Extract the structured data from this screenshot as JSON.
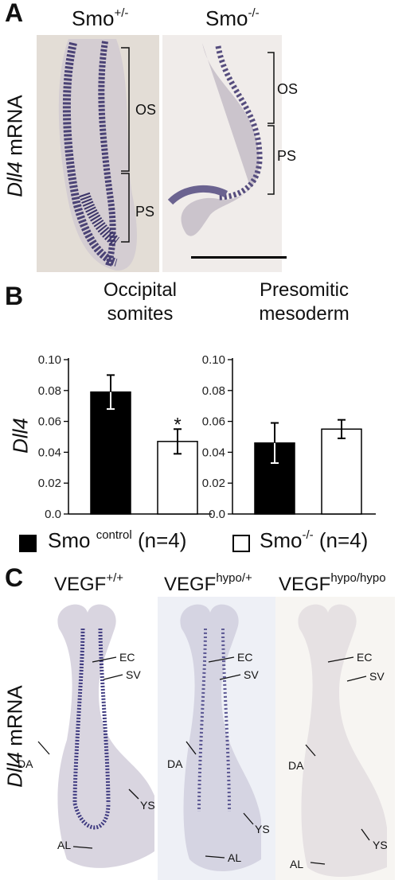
{
  "panel_a": {
    "letter": "A",
    "col1_base": "Smo",
    "col1_sup": "+/-",
    "col2_base": "Smo",
    "col2_sup": "-/-",
    "ylabel_gene": "Dll4",
    "ylabel_rest": " mRNA",
    "col1_labels": [
      "OS",
      "PS"
    ],
    "col2_labels": [
      "OS",
      "PS"
    ]
  },
  "panel_b": {
    "letter": "B",
    "ylabel": "Dll4",
    "legend": [
      {
        "base": "Smo",
        "sup": "control",
        "n": "(n=4)",
        "fill": "#000000"
      },
      {
        "base": "Smo",
        "sup": "-/-",
        "n": "(n=4)",
        "fill": "#ffffff"
      }
    ]
  },
  "chart_data": [
    {
      "type": "bar",
      "title": "Occipital somites",
      "title_lines": [
        "Occipital",
        "somites"
      ],
      "ylabel": "Dll4",
      "ylim": [
        0,
        0.1
      ],
      "yticks": [
        "0.0",
        "0.02",
        "0.04",
        "0.06",
        "0.08",
        "0.10"
      ],
      "series": [
        {
          "name": "Smo control (n=4)",
          "values": [
            0.079
          ],
          "errors": [
            0.011
          ],
          "color": "#000000"
        },
        {
          "name": "Smo-/- (n=4)",
          "values": [
            0.047
          ],
          "errors": [
            0.008
          ],
          "color": "#ffffff"
        }
      ],
      "annotations": [
        {
          "series": 1,
          "text": "*"
        }
      ]
    },
    {
      "type": "bar",
      "title": "Presomitic mesoderm",
      "title_lines": [
        "Presomitic",
        "mesoderm"
      ],
      "ylim": [
        0,
        0.1
      ],
      "yticks": [
        "0.0",
        "0.02",
        "0.04",
        "0.06",
        "0.08",
        "0.10"
      ],
      "series": [
        {
          "name": "Smo control (n=4)",
          "values": [
            0.046
          ],
          "errors": [
            0.013
          ],
          "color": "#000000"
        },
        {
          "name": "Smo-/- (n=4)",
          "values": [
            0.055
          ],
          "errors": [
            0.006
          ],
          "color": "#ffffff"
        }
      ],
      "annotations": []
    }
  ],
  "panel_c": {
    "letter": "C",
    "col1_base": "VEGF",
    "col1_sup": "+/+",
    "col2_base": "VEGF",
    "col2_sup": "hypo/+",
    "col3_base": "VEGF",
    "col3_sup": "hypo/hypo",
    "ylabel_gene": "Dll4",
    "ylabel_rest": " mRNA",
    "labels": {
      "ec": "EC",
      "sv": "SV",
      "da": "DA",
      "ys": "YS",
      "al": "AL"
    }
  }
}
